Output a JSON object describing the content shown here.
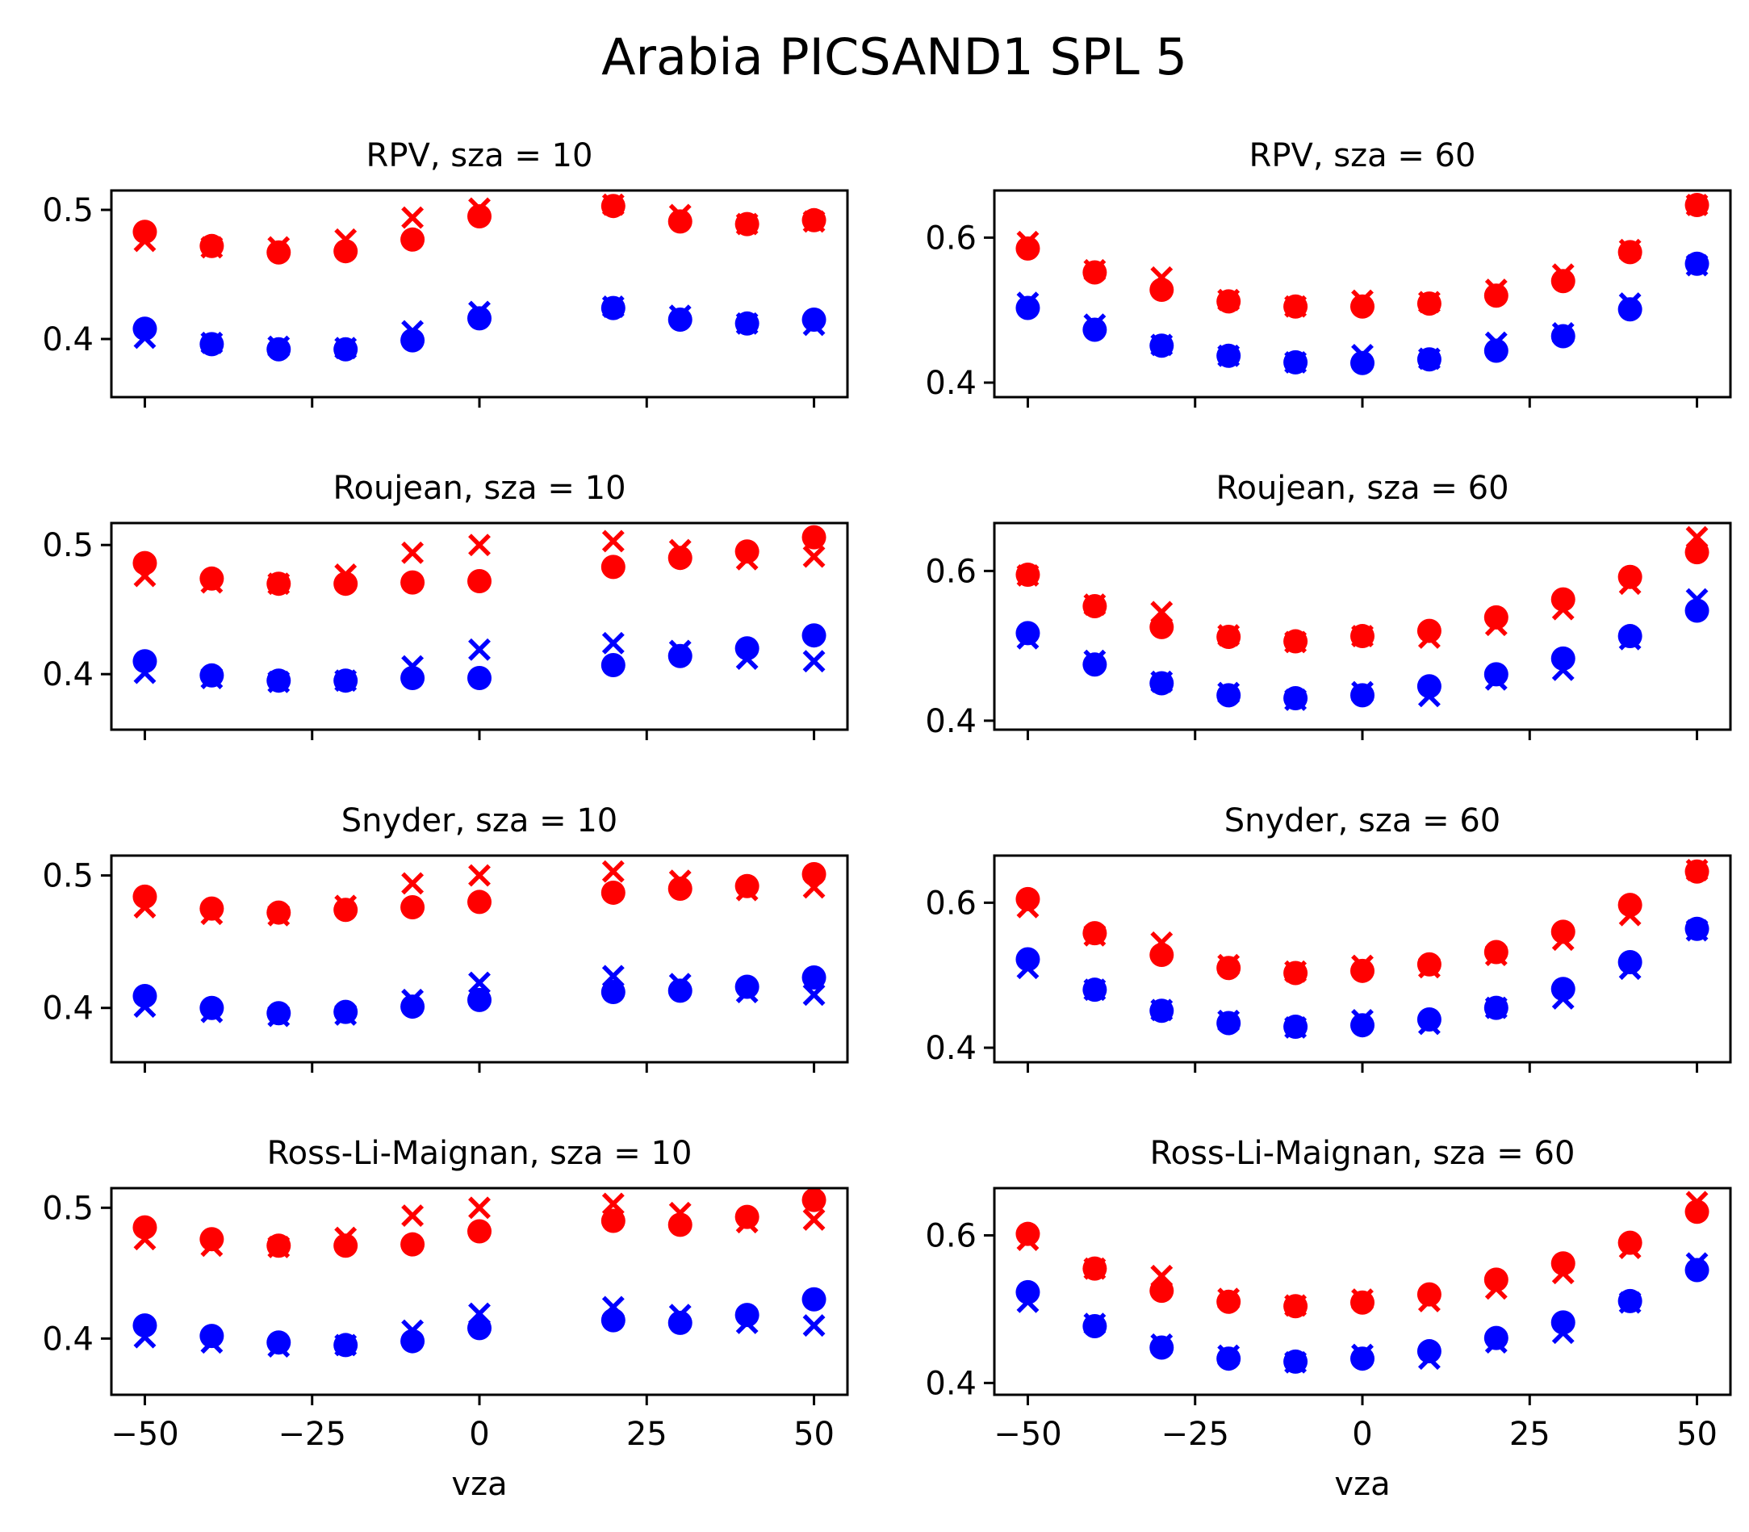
{
  "figure_title": "Arabia PICSAND1 SPL 5",
  "colors": {
    "red_series": "#ff0000",
    "blue_series": "#0000ff"
  },
  "chart_data": [
    {
      "type": "scatter",
      "title": "RPV, sza = 10",
      "xlabel": "",
      "ylabel": "",
      "xlim": [
        -55,
        55
      ],
      "ylim": [
        0.355,
        0.515
      ],
      "xticks": [
        -50,
        -25,
        0,
        25,
        50
      ],
      "xticklabels": [
        "",
        "",
        "",
        "",
        ""
      ],
      "yticks": [
        0.4,
        0.5
      ],
      "yticklabels": [
        "0.4",
        "0.5"
      ],
      "x": [
        -50,
        -40,
        -30,
        -20,
        -10,
        0,
        20,
        30,
        40,
        50
      ],
      "series": [
        {
          "name": "red-circle",
          "marker": "circle",
          "color": "red",
          "values": [
            0.483,
            0.472,
            0.467,
            0.468,
            0.477,
            0.495,
            0.503,
            0.491,
            0.489,
            0.492
          ]
        },
        {
          "name": "red-cross",
          "marker": "x",
          "color": "red",
          "values": [
            0.476,
            0.471,
            0.471,
            0.477,
            0.494,
            0.501,
            0.504,
            0.496,
            0.489,
            0.491
          ]
        },
        {
          "name": "blue-circle",
          "marker": "circle",
          "color": "blue",
          "values": [
            0.408,
            0.396,
            0.392,
            0.392,
            0.399,
            0.416,
            0.424,
            0.415,
            0.412,
            0.415
          ]
        },
        {
          "name": "blue-cross",
          "marker": "x",
          "color": "blue",
          "values": [
            0.401,
            0.397,
            0.394,
            0.393,
            0.406,
            0.421,
            0.425,
            0.418,
            0.412,
            0.411
          ]
        }
      ]
    },
    {
      "type": "scatter",
      "title": "RPV, sza = 60",
      "xlabel": "",
      "ylabel": "",
      "xlim": [
        -55,
        55
      ],
      "ylim": [
        0.38,
        0.665
      ],
      "xticks": [
        -50,
        -25,
        0,
        25,
        50
      ],
      "xticklabels": [
        "",
        "",
        "",
        "",
        ""
      ],
      "yticks": [
        0.4,
        0.6
      ],
      "yticklabels": [
        "0.4",
        "0.6"
      ],
      "x": [
        -50,
        -40,
        -30,
        -20,
        -10,
        0,
        10,
        20,
        30,
        40,
        50
      ],
      "series": [
        {
          "name": "red-circle",
          "marker": "circle",
          "color": "red",
          "values": [
            0.585,
            0.552,
            0.528,
            0.512,
            0.505,
            0.505,
            0.509,
            0.52,
            0.54,
            0.58,
            0.645
          ]
        },
        {
          "name": "red-cross",
          "marker": "x",
          "color": "red",
          "values": [
            0.594,
            0.555,
            0.545,
            0.514,
            0.505,
            0.513,
            0.511,
            0.528,
            0.549,
            0.583,
            0.645
          ]
        },
        {
          "name": "blue-circle",
          "marker": "circle",
          "color": "blue",
          "values": [
            0.503,
            0.473,
            0.451,
            0.437,
            0.428,
            0.427,
            0.432,
            0.444,
            0.464,
            0.501,
            0.564
          ]
        },
        {
          "name": "blue-cross",
          "marker": "x",
          "color": "blue",
          "values": [
            0.51,
            0.48,
            0.452,
            0.437,
            0.428,
            0.438,
            0.433,
            0.455,
            0.468,
            0.509,
            0.562
          ]
        }
      ]
    },
    {
      "type": "scatter",
      "title": "Roujean, sza = 10",
      "xlabel": "",
      "ylabel": "",
      "xlim": [
        -55,
        55
      ],
      "ylim": [
        0.357,
        0.517
      ],
      "xticks": [
        -50,
        -25,
        0,
        25,
        50
      ],
      "xticklabels": [
        "",
        "",
        "",
        "",
        ""
      ],
      "yticks": [
        0.4,
        0.5
      ],
      "yticklabels": [
        "0.4",
        "0.5"
      ],
      "x": [
        -50,
        -40,
        -30,
        -20,
        -10,
        0,
        20,
        30,
        40,
        50
      ],
      "series": [
        {
          "name": "red-circle",
          "marker": "circle",
          "color": "red",
          "values": [
            0.486,
            0.474,
            0.47,
            0.47,
            0.471,
            0.472,
            0.483,
            0.49,
            0.495,
            0.506
          ]
        },
        {
          "name": "red-cross",
          "marker": "x",
          "color": "red",
          "values": [
            0.476,
            0.471,
            0.47,
            0.477,
            0.494,
            0.5,
            0.503,
            0.496,
            0.489,
            0.491
          ]
        },
        {
          "name": "blue-circle",
          "marker": "circle",
          "color": "blue",
          "values": [
            0.41,
            0.399,
            0.395,
            0.395,
            0.397,
            0.397,
            0.407,
            0.414,
            0.42,
            0.43
          ]
        },
        {
          "name": "blue-cross",
          "marker": "x",
          "color": "blue",
          "values": [
            0.401,
            0.397,
            0.394,
            0.395,
            0.406,
            0.419,
            0.424,
            0.418,
            0.412,
            0.41
          ]
        }
      ]
    },
    {
      "type": "scatter",
      "title": "Roujean, sza = 60",
      "xlabel": "",
      "ylabel": "",
      "xlim": [
        -55,
        55
      ],
      "ylim": [
        0.388,
        0.664
      ],
      "xticks": [
        -50,
        -25,
        0,
        25,
        50
      ],
      "xticklabels": [
        "",
        "",
        "",
        "",
        ""
      ],
      "yticks": [
        0.4,
        0.6
      ],
      "yticklabels": [
        "0.4",
        "0.6"
      ],
      "x": [
        -50,
        -40,
        -30,
        -20,
        -10,
        0,
        10,
        20,
        30,
        40,
        50
      ],
      "series": [
        {
          "name": "red-circle",
          "marker": "circle",
          "color": "red",
          "values": [
            0.595,
            0.553,
            0.525,
            0.512,
            0.506,
            0.513,
            0.52,
            0.538,
            0.562,
            0.592,
            0.625
          ]
        },
        {
          "name": "red-cross",
          "marker": "x",
          "color": "red",
          "values": [
            0.594,
            0.555,
            0.545,
            0.514,
            0.505,
            0.513,
            0.511,
            0.528,
            0.549,
            0.583,
            0.645
          ]
        },
        {
          "name": "blue-circle",
          "marker": "circle",
          "color": "blue",
          "values": [
            0.517,
            0.475,
            0.45,
            0.434,
            0.43,
            0.434,
            0.446,
            0.462,
            0.483,
            0.513,
            0.547
          ]
        },
        {
          "name": "blue-cross",
          "marker": "x",
          "color": "blue",
          "values": [
            0.51,
            0.48,
            0.452,
            0.437,
            0.428,
            0.438,
            0.433,
            0.455,
            0.468,
            0.509,
            0.562
          ]
        }
      ]
    },
    {
      "type": "scatter",
      "title": "Snyder, sza = 10",
      "xlabel": "",
      "ylabel": "",
      "xlim": [
        -55,
        55
      ],
      "ylim": [
        0.359,
        0.515
      ],
      "xticks": [
        -50,
        -25,
        0,
        25,
        50
      ],
      "xticklabels": [
        "",
        "",
        "",
        "",
        ""
      ],
      "yticks": [
        0.4,
        0.5
      ],
      "yticklabels": [
        "0.4",
        "0.5"
      ],
      "x": [
        -50,
        -40,
        -30,
        -20,
        -10,
        0,
        20,
        30,
        40,
        50
      ],
      "series": [
        {
          "name": "red-circle",
          "marker": "circle",
          "color": "red",
          "values": [
            0.484,
            0.475,
            0.472,
            0.474,
            0.476,
            0.48,
            0.487,
            0.49,
            0.492,
            0.501
          ]
        },
        {
          "name": "red-cross",
          "marker": "x",
          "color": "red",
          "values": [
            0.476,
            0.471,
            0.47,
            0.477,
            0.494,
            0.5,
            0.503,
            0.496,
            0.489,
            0.491
          ]
        },
        {
          "name": "blue-circle",
          "marker": "circle",
          "color": "blue",
          "values": [
            0.409,
            0.4,
            0.396,
            0.397,
            0.401,
            0.406,
            0.412,
            0.413,
            0.416,
            0.423
          ]
        },
        {
          "name": "blue-cross",
          "marker": "x",
          "color": "blue",
          "values": [
            0.401,
            0.397,
            0.394,
            0.395,
            0.406,
            0.419,
            0.424,
            0.418,
            0.412,
            0.41
          ]
        }
      ]
    },
    {
      "type": "scatter",
      "title": "Snyder, sza = 60",
      "xlabel": "",
      "ylabel": "",
      "xlim": [
        -55,
        55
      ],
      "ylim": [
        0.38,
        0.665
      ],
      "xticks": [
        -50,
        -25,
        0,
        25,
        50
      ],
      "xticklabels": [
        "",
        "",
        "",
        "",
        ""
      ],
      "yticks": [
        0.4,
        0.6
      ],
      "yticklabels": [
        "0.4",
        "0.6"
      ],
      "x": [
        -50,
        -40,
        -30,
        -20,
        -10,
        0,
        10,
        20,
        30,
        40,
        50
      ],
      "series": [
        {
          "name": "red-circle",
          "marker": "circle",
          "color": "red",
          "values": [
            0.605,
            0.558,
            0.528,
            0.51,
            0.503,
            0.506,
            0.515,
            0.532,
            0.56,
            0.597,
            0.643
          ]
        },
        {
          "name": "red-cross",
          "marker": "x",
          "color": "red",
          "values": [
            0.594,
            0.555,
            0.545,
            0.514,
            0.505,
            0.513,
            0.511,
            0.528,
            0.549,
            0.583,
            0.645
          ]
        },
        {
          "name": "blue-circle",
          "marker": "circle",
          "color": "blue",
          "values": [
            0.522,
            0.48,
            0.451,
            0.434,
            0.429,
            0.431,
            0.439,
            0.455,
            0.481,
            0.518,
            0.564
          ]
        },
        {
          "name": "blue-cross",
          "marker": "x",
          "color": "blue",
          "values": [
            0.51,
            0.48,
            0.452,
            0.437,
            0.428,
            0.438,
            0.433,
            0.455,
            0.468,
            0.509,
            0.562
          ]
        }
      ]
    },
    {
      "type": "scatter",
      "title": "Ross-Li-Maignan, sza = 10",
      "xlabel": "vza",
      "ylabel": "",
      "xlim": [
        -55,
        55
      ],
      "ylim": [
        0.357,
        0.515
      ],
      "xticks": [
        -50,
        -25,
        0,
        25,
        50
      ],
      "xticklabels": [
        "−50",
        "−25",
        "0",
        "25",
        "50"
      ],
      "yticks": [
        0.4,
        0.5
      ],
      "yticklabels": [
        "0.4",
        "0.5"
      ],
      "x": [
        -50,
        -40,
        -30,
        -20,
        -10,
        0,
        20,
        30,
        40,
        50
      ],
      "series": [
        {
          "name": "red-circle",
          "marker": "circle",
          "color": "red",
          "values": [
            0.485,
            0.476,
            0.471,
            0.471,
            0.472,
            0.482,
            0.49,
            0.487,
            0.493,
            0.506
          ]
        },
        {
          "name": "red-cross",
          "marker": "x",
          "color": "red",
          "values": [
            0.476,
            0.471,
            0.47,
            0.477,
            0.494,
            0.5,
            0.503,
            0.496,
            0.489,
            0.491
          ]
        },
        {
          "name": "blue-circle",
          "marker": "circle",
          "color": "blue",
          "values": [
            0.41,
            0.402,
            0.397,
            0.395,
            0.398,
            0.408,
            0.414,
            0.412,
            0.418,
            0.43
          ]
        },
        {
          "name": "blue-cross",
          "marker": "x",
          "color": "blue",
          "values": [
            0.401,
            0.397,
            0.394,
            0.395,
            0.406,
            0.419,
            0.424,
            0.418,
            0.412,
            0.41
          ]
        }
      ]
    },
    {
      "type": "scatter",
      "title": "Ross-Li-Maignan, sza = 60",
      "xlabel": "vza",
      "ylabel": "",
      "xlim": [
        -55,
        55
      ],
      "ylim": [
        0.384,
        0.664
      ],
      "xticks": [
        -50,
        -25,
        0,
        25,
        50
      ],
      "xticklabels": [
        "−50",
        "−25",
        "0",
        "25",
        "50"
      ],
      "yticks": [
        0.4,
        0.6
      ],
      "yticklabels": [
        "0.4",
        "0.6"
      ],
      "x": [
        -50,
        -40,
        -30,
        -20,
        -10,
        0,
        10,
        20,
        30,
        40,
        50
      ],
      "series": [
        {
          "name": "red-circle",
          "marker": "circle",
          "color": "red",
          "values": [
            0.602,
            0.555,
            0.525,
            0.51,
            0.504,
            0.509,
            0.52,
            0.54,
            0.562,
            0.59,
            0.632
          ]
        },
        {
          "name": "red-cross",
          "marker": "x",
          "color": "red",
          "values": [
            0.594,
            0.555,
            0.545,
            0.514,
            0.505,
            0.513,
            0.511,
            0.528,
            0.549,
            0.583,
            0.645
          ]
        },
        {
          "name": "blue-circle",
          "marker": "circle",
          "color": "blue",
          "values": [
            0.523,
            0.477,
            0.448,
            0.433,
            0.429,
            0.433,
            0.443,
            0.461,
            0.482,
            0.511,
            0.553
          ]
        },
        {
          "name": "blue-cross",
          "marker": "x",
          "color": "blue",
          "values": [
            0.51,
            0.48,
            0.452,
            0.437,
            0.428,
            0.438,
            0.433,
            0.455,
            0.468,
            0.509,
            0.562
          ]
        }
      ]
    }
  ]
}
